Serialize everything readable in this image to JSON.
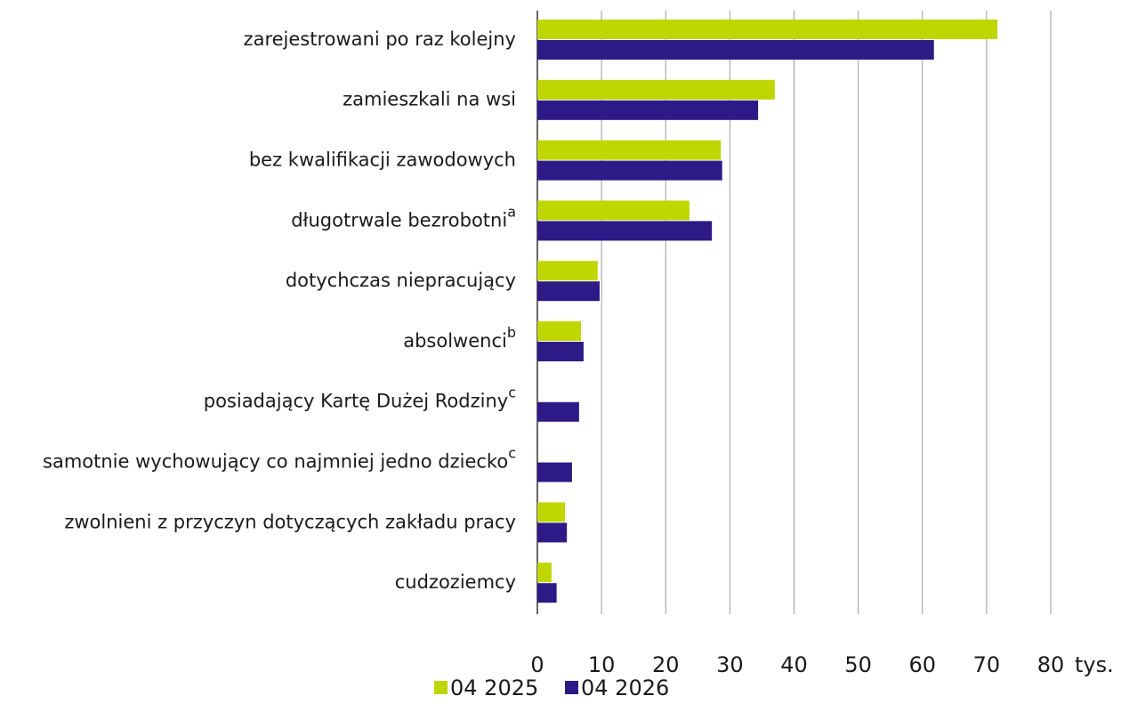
{
  "chart_data": {
    "type": "barh",
    "categories": [
      "zarejestrowani po raz kolejny",
      "zamieszkali na wsi",
      "bez kwalifikacji zawodowych",
      "długotrwale bezrobotni",
      "dotychczas niepracujący",
      "absolwenci",
      "posiadający Kartę Dużej Rodziny",
      "samotnie wychowujący co najmniej jedno dziecko",
      "zwolnieni z przyczyn dotyczących zakładu pracy",
      "cudzoziemcy"
    ],
    "category_notes": [
      null,
      null,
      null,
      "a",
      null,
      "b",
      "c",
      "c",
      null,
      null
    ],
    "series": [
      {
        "name": "04 2025",
        "color": "#c0d600",
        "values": [
          71.7,
          37.0,
          28.6,
          23.7,
          9.4,
          6.8,
          null,
          null,
          4.3,
          2.2
        ]
      },
      {
        "name": "04 2026",
        "color": "#2e1a87",
        "values": [
          61.8,
          34.4,
          28.8,
          27.2,
          9.7,
          7.2,
          6.5,
          5.4,
          4.6,
          3.0
        ]
      }
    ],
    "xlabel": "tys.",
    "xlim": [
      0,
      80
    ],
    "xticks": [
      0,
      10,
      20,
      30,
      40,
      50,
      60,
      70,
      80
    ],
    "grid": true,
    "legend": "bottom"
  }
}
